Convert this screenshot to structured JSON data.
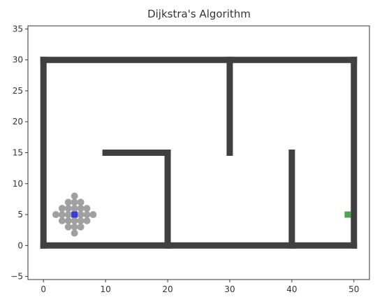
{
  "chart_data": {
    "type": "scatter",
    "title": "Dijkstra's Algorithm",
    "xlabel": "",
    "ylabel": "",
    "xlim": [
      -2.5,
      52.5
    ],
    "ylim": [
      -5.5,
      35.5
    ],
    "x_ticks": [
      0,
      10,
      20,
      30,
      40,
      50
    ],
    "y_ticks": [
      -5,
      0,
      5,
      10,
      15,
      20,
      25,
      30,
      35
    ],
    "grid": false,
    "legend": "none",
    "walls": [
      {
        "x1": 0,
        "y1": 0,
        "x2": 50,
        "y2": 0
      },
      {
        "x1": 0,
        "y1": 0,
        "x2": 0,
        "y2": 30
      },
      {
        "x1": 0,
        "y1": 30,
        "x2": 50,
        "y2": 30
      },
      {
        "x1": 50,
        "y1": 0,
        "x2": 50,
        "y2": 30
      },
      {
        "x1": 10,
        "y1": 15,
        "x2": 20,
        "y2": 15
      },
      {
        "x1": 20,
        "y1": 0,
        "x2": 20,
        "y2": 15
      },
      {
        "x1": 30,
        "y1": 15,
        "x2": 30,
        "y2": 30
      },
      {
        "x1": 40,
        "y1": 0,
        "x2": 40,
        "y2": 15
      }
    ],
    "explored": [
      {
        "x": 5,
        "y": 8
      },
      {
        "x": 4,
        "y": 7
      },
      {
        "x": 5,
        "y": 7
      },
      {
        "x": 6,
        "y": 7
      },
      {
        "x": 3,
        "y": 6
      },
      {
        "x": 4,
        "y": 6
      },
      {
        "x": 5,
        "y": 6
      },
      {
        "x": 6,
        "y": 6
      },
      {
        "x": 7,
        "y": 6
      },
      {
        "x": 2,
        "y": 5
      },
      {
        "x": 3,
        "y": 5
      },
      {
        "x": 4,
        "y": 5
      },
      {
        "x": 6,
        "y": 5
      },
      {
        "x": 7,
        "y": 5
      },
      {
        "x": 8,
        "y": 5
      },
      {
        "x": 3,
        "y": 4
      },
      {
        "x": 4,
        "y": 4
      },
      {
        "x": 5,
        "y": 4
      },
      {
        "x": 6,
        "y": 4
      },
      {
        "x": 7,
        "y": 4
      },
      {
        "x": 4,
        "y": 3
      },
      {
        "x": 5,
        "y": 3
      },
      {
        "x": 6,
        "y": 3
      },
      {
        "x": 5,
        "y": 2
      }
    ],
    "start": {
      "x": 5,
      "y": 5
    },
    "goal": {
      "x": 49,
      "y": 5
    },
    "colors": {
      "wall": "#404040",
      "explored": "#a0a0a0",
      "start": "#3a3ad8",
      "goal": "#4ca64c",
      "axes": "#333333"
    }
  }
}
